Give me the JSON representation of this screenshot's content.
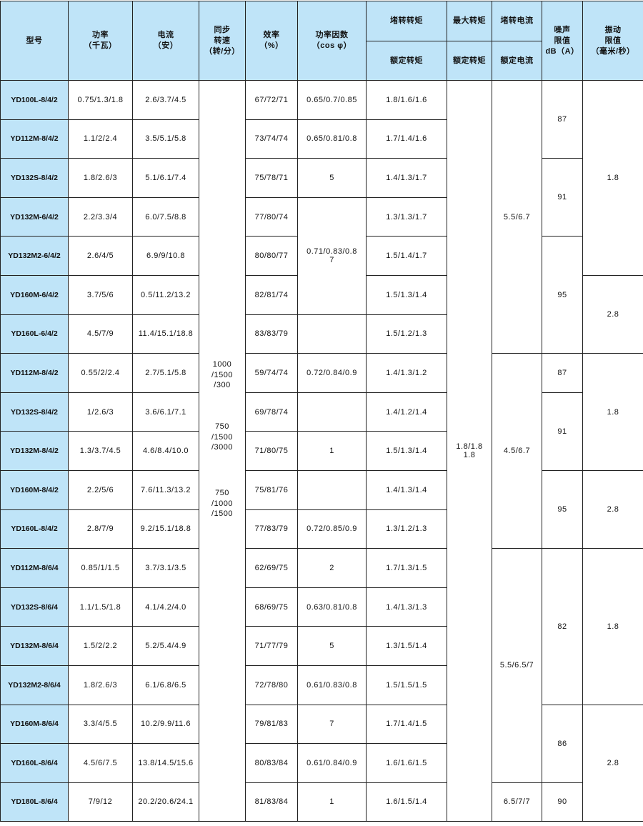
{
  "header": {
    "model": "型号",
    "power": "功率\n（千瓦）",
    "current": "电流\n（安）",
    "speed": "同步\n转速\n（转/分）",
    "efficiency": "效率\n（%）",
    "power_factor": "功率因数\n（cos φ）",
    "locked_torque": "堵转转矩",
    "max_torque": "最大转矩",
    "locked_current": "堵转电流",
    "rated_torque_1": "额定转矩",
    "rated_torque_2": "额定转矩",
    "rated_current": "额定电流",
    "noise": "噪声\n限值\ndB（A）",
    "vibration": "振动\n限值\n（毫米/秒）"
  },
  "rows": [
    {
      "model": "YD100L-8/4/2",
      "power": "0.75/1.3/1.8",
      "current": "2.6/3.7/4.5",
      "efficiency": "67/72/71",
      "torque_ratio": "1.8/1.6/1.6"
    },
    {
      "model": "YD112M-8/4/2",
      "power": "1.1/2/2.4",
      "current": "3.5/5.1/5.8",
      "efficiency": "73/74/74",
      "torque_ratio": "1.7/1.4/1.6"
    },
    {
      "model": "YD132S-8/4/2",
      "power": "1.8/2.6/3",
      "current": "5.1/6.1/7.4",
      "efficiency": "75/78/71",
      "torque_ratio": "1.4/1.3/1.7"
    },
    {
      "model": "YD132M-6/4/2",
      "power": "2.2/3.3/4",
      "current": "6.0/7.5/8.8",
      "efficiency": "77/80/74",
      "torque_ratio": "1.3/1.3/1.7"
    },
    {
      "model": "YD132M2-6/4/2",
      "power": "2.6/4/5",
      "current": "6.9/9/10.8",
      "efficiency": "80/80/77",
      "torque_ratio": "1.5/1.4/1.7"
    },
    {
      "model": "YD160M-6/4/2",
      "power": "3.7/5/6",
      "current": "0.5/11.2/13.2",
      "efficiency": "82/81/74",
      "torque_ratio": "1.5/1.3/1.4"
    },
    {
      "model": "YD160L-6/4/2",
      "power": "4.5/7/9",
      "current": "11.4/15.1/18.8",
      "efficiency": "83/83/79",
      "torque_ratio": "1.5/1.2/1.3"
    },
    {
      "model": "YD112M-8/4/2",
      "power": "0.55/2/2.4",
      "current": "2.7/5.1/5.8",
      "efficiency": "59/74/74",
      "torque_ratio": "1.4/1.3/1.2"
    },
    {
      "model": "YD132S-8/4/2",
      "power": "1/2.6/3",
      "current": "3.6/6.1/7.1",
      "efficiency": "69/78/74",
      "torque_ratio": "1.4/1.2/1.4"
    },
    {
      "model": "YD132M-8/4/2",
      "power": "1.3/3.7/4.5",
      "current": "4.6/8.4/10.0",
      "efficiency": "71/80/75",
      "torque_ratio": "1.5/1.3/1.4"
    },
    {
      "model": "YD160M-8/4/2",
      "power": "2.2/5/6",
      "current": "7.6/11.3/13.2",
      "efficiency": "75/81/76",
      "torque_ratio": "1.4/1.3/1.4"
    },
    {
      "model": "YD160L-8/4/2",
      "power": "2.8/7/9",
      "current": "9.2/15.1/18.8",
      "efficiency": "77/83/79",
      "torque_ratio": "1.3/1.2/1.3"
    },
    {
      "model": "YD112M-8/6/4",
      "power": "0.85/1/1.5",
      "current": "3.7/3.1/3.5",
      "efficiency": "62/69/75",
      "torque_ratio": "1.7/1.3/1.5"
    },
    {
      "model": "YD132S-8/6/4",
      "power": "1.1/1.5/1.8",
      "current": "4.1/4.2/4.0",
      "efficiency": "68/69/75",
      "torque_ratio": "1.4/1.3/1.3"
    },
    {
      "model": "YD132M-8/6/4",
      "power": "1.5/2/2.2",
      "current": "5.2/5.4/4.9",
      "efficiency": "71/77/79",
      "torque_ratio": "1.3/1.5/1.4"
    },
    {
      "model": "YD132M2-8/6/4",
      "power": "1.8/2.6/3",
      "current": "6.1/6.8/6.5",
      "efficiency": "72/78/80",
      "torque_ratio": "1.5/1.5/1.5"
    },
    {
      "model": "YD160M-8/6/4",
      "power": "3.3/4/5.5",
      "current": "10.2/9.9/11.6",
      "efficiency": "79/81/83",
      "torque_ratio": "1.7/1.4/1.5"
    },
    {
      "model": "YD160L-8/6/4",
      "power": "4.5/6/7.5",
      "current": "13.8/14.5/15.6",
      "efficiency": "80/83/84",
      "torque_ratio": "1.6/1.6/1.5"
    },
    {
      "model": "YD180L-8/6/4",
      "power": "7/9/12",
      "current": "20.2/20.6/24.1",
      "efficiency": "81/83/84",
      "torque_ratio": "1.6/1.5/1.4"
    }
  ],
  "speed_values": [
    "1000\n/1500\n/300",
    "750\n/1500\n/3000",
    "750\n/1000\n/1500"
  ],
  "power_factor": [
    "0.65/0.7/0.85",
    "0.65/0.81/0.8",
    "5",
    "0.71/0.83/0.8\n7",
    "",
    "0.72/0.84/0.9",
    "",
    "1",
    "",
    "0.72/0.85/0.9",
    "2",
    "0.63/0.81/0.8",
    "5",
    "0.61/0.83/0.8",
    "7",
    "0.61/0.84/0.9",
    "1"
  ],
  "max_torque": "1.8/1.8\n1.8",
  "locked_current": [
    "5.5/6.7",
    "4.5/6.7",
    "5.5/6.5/7",
    "6.5/7/7"
  ],
  "noise": [
    "87",
    "91",
    "95",
    "87",
    "91",
    "95",
    "82",
    "86",
    "90"
  ],
  "vibration": [
    "1.8",
    "2.8",
    "1.8",
    "2.8",
    "1.8",
    "2.8"
  ],
  "colors": {
    "header_bg": "#bfe4f8",
    "border": "#222222"
  }
}
